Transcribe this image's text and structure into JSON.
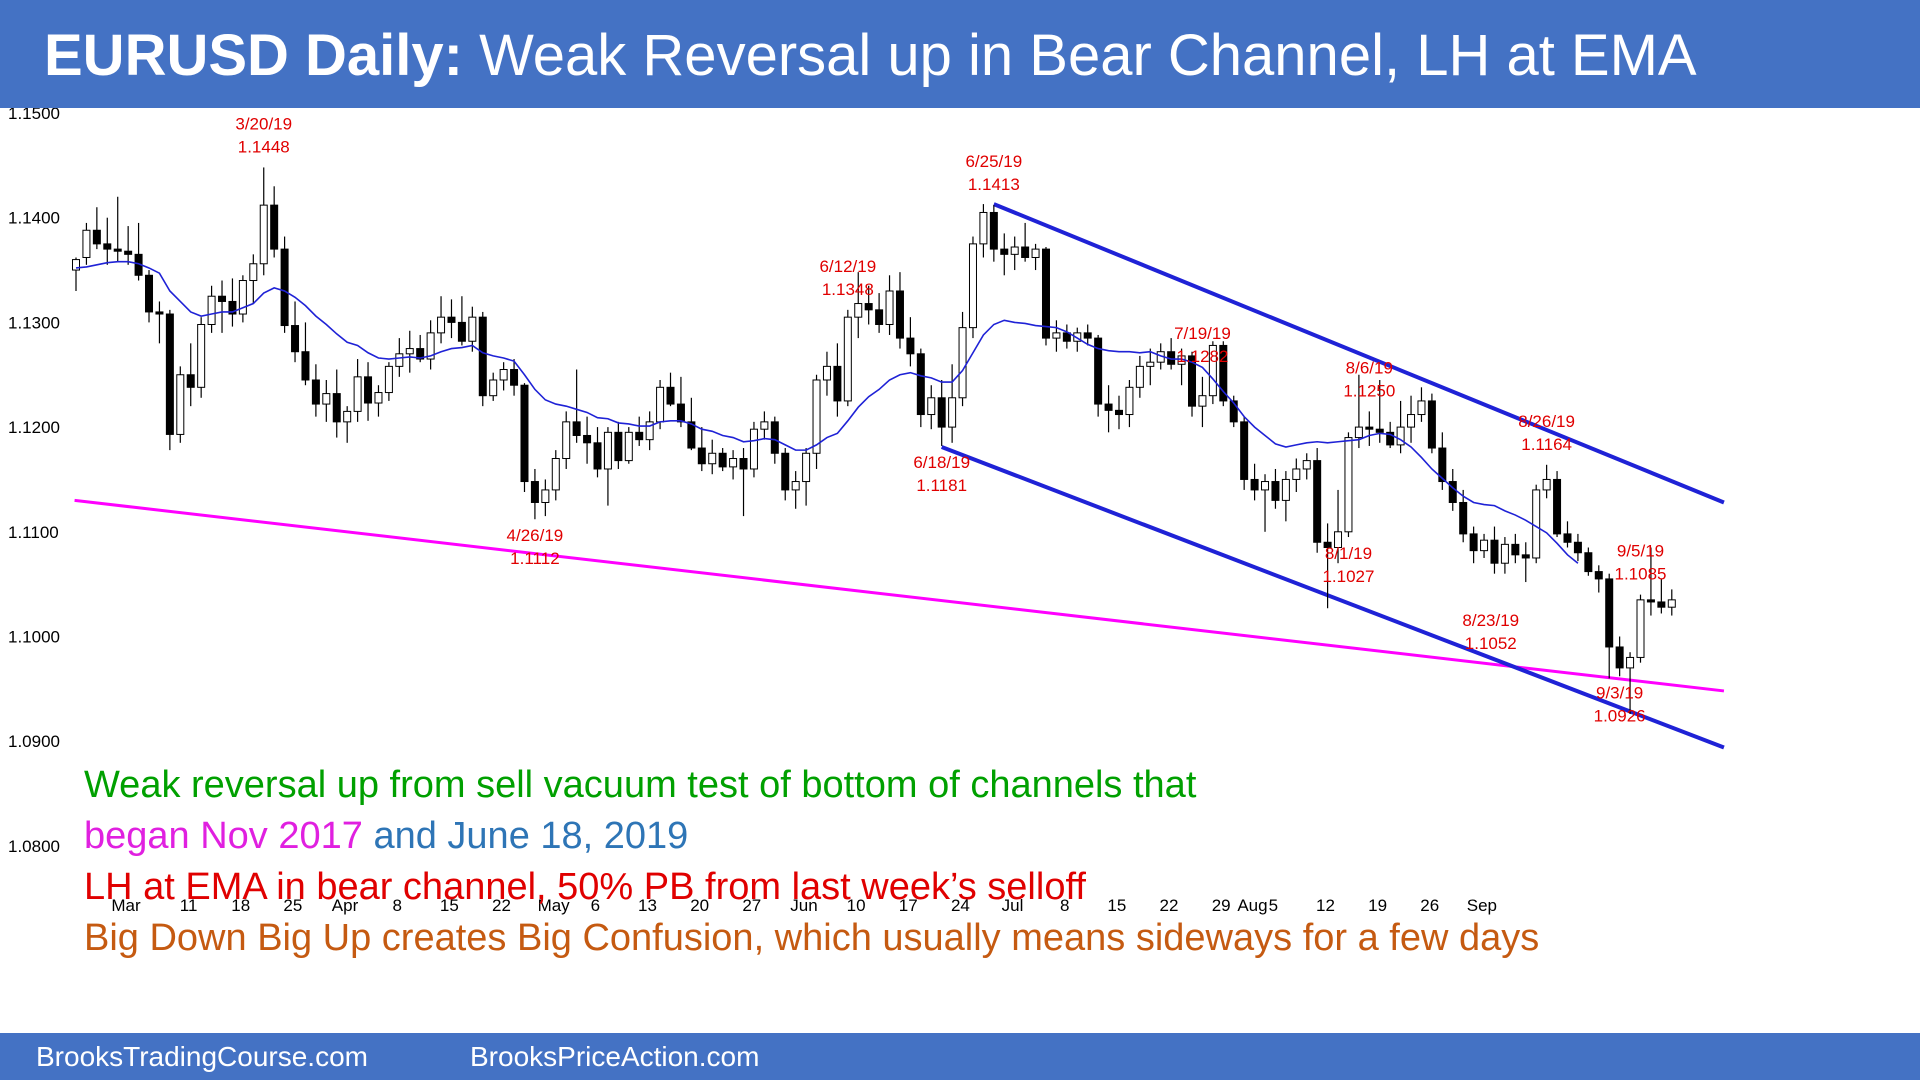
{
  "header": {
    "title_bold": "EURUSD Daily:",
    "title_rest": " Weak Reversal up in Bear Channel, LH at EMA"
  },
  "footer": {
    "left": "BrooksTradingCourse.com",
    "right": "BrooksPriceAction.com"
  },
  "notes": {
    "line1": "Weak reversal up from sell vacuum test of bottom of channels that",
    "line2a": "began Nov 2017",
    "line2b": " and June 18, 2019",
    "line3": "LH at EMA in bear channel, 50% PB from last week’s selloff",
    "line4": "Big Down Big Up creates Big Confusion, which usually means sideways for a few days"
  },
  "colors": {
    "header_bg": "#4472C4",
    "note_green": "#00A000",
    "note_magenta": "#E020E0",
    "note_blue": "#2E75B6",
    "note_red": "#E00000",
    "note_orange": "#C55A11",
    "channel_line": "#1F22D6",
    "trend_line": "#FF00FF",
    "ema_line": "#1F22D6",
    "annotation": "#E00000"
  },
  "chart_data": {
    "type": "candlestick",
    "title": "EURUSD Daily: Weak Reversal up in Bear Channel, LH at EMA",
    "ylim": [
      1.079,
      1.152
    ],
    "y_ticks": [
      "1.1500",
      "1.1400",
      "1.1300",
      "1.1200",
      "1.1100",
      "1.1000",
      "1.0900",
      "1.0800"
    ],
    "x_ticks": [
      {
        "i": 0,
        "label": "Mar"
      },
      {
        "i": 6,
        "label": "11"
      },
      {
        "i": 11,
        "label": "18"
      },
      {
        "i": 16,
        "label": "25"
      },
      {
        "i": 21,
        "label": "Apr"
      },
      {
        "i": 26,
        "label": "8"
      },
      {
        "i": 31,
        "label": "15"
      },
      {
        "i": 36,
        "label": "22"
      },
      {
        "i": 41,
        "label": "May"
      },
      {
        "i": 45,
        "label": "6"
      },
      {
        "i": 50,
        "label": "13"
      },
      {
        "i": 55,
        "label": "20"
      },
      {
        "i": 60,
        "label": "27"
      },
      {
        "i": 65,
        "label": "Jun"
      },
      {
        "i": 70,
        "label": "10"
      },
      {
        "i": 75,
        "label": "17"
      },
      {
        "i": 80,
        "label": "24"
      },
      {
        "i": 85,
        "label": "Jul"
      },
      {
        "i": 90,
        "label": "8"
      },
      {
        "i": 95,
        "label": "15"
      },
      {
        "i": 100,
        "label": "22"
      },
      {
        "i": 105,
        "label": "29"
      },
      {
        "i": 108,
        "label": "Aug"
      },
      {
        "i": 110,
        "label": "5"
      },
      {
        "i": 115,
        "label": "12"
      },
      {
        "i": 120,
        "label": "19"
      },
      {
        "i": 125,
        "label": "26"
      },
      {
        "i": 130,
        "label": "Sep"
      }
    ],
    "candles": [
      [
        1.135,
        1.1362,
        1.133,
        1.136
      ],
      [
        1.1362,
        1.1395,
        1.1355,
        1.1388
      ],
      [
        1.1388,
        1.141,
        1.137,
        1.1375
      ],
      [
        1.1375,
        1.14,
        1.1355,
        1.137
      ],
      [
        1.137,
        1.142,
        1.1358,
        1.1368
      ],
      [
        1.1368,
        1.1392,
        1.1355,
        1.1365
      ],
      [
        1.1365,
        1.1395,
        1.134,
        1.1345
      ],
      [
        1.1345,
        1.135,
        1.13,
        1.131
      ],
      [
        1.131,
        1.132,
        1.128,
        1.1308
      ],
      [
        1.1308,
        1.1312,
        1.1178,
        1.1193
      ],
      [
        1.1193,
        1.1258,
        1.1185,
        1.125
      ],
      [
        1.125,
        1.128,
        1.122,
        1.1238
      ],
      [
        1.1238,
        1.1305,
        1.1228,
        1.1298
      ],
      [
        1.1298,
        1.1335,
        1.129,
        1.1325
      ],
      [
        1.1325,
        1.134,
        1.129,
        1.132
      ],
      [
        1.132,
        1.1342,
        1.1296,
        1.1308
      ],
      [
        1.1308,
        1.1345,
        1.13,
        1.134
      ],
      [
        1.134,
        1.1365,
        1.1318,
        1.1356
      ],
      [
        1.1356,
        1.1448,
        1.1345,
        1.1412
      ],
      [
        1.1412,
        1.143,
        1.1362,
        1.137
      ],
      [
        1.137,
        1.1382,
        1.129,
        1.1297
      ],
      [
        1.1297,
        1.132,
        1.1262,
        1.1272
      ],
      [
        1.1272,
        1.13,
        1.124,
        1.1245
      ],
      [
        1.1245,
        1.126,
        1.121,
        1.1222
      ],
      [
        1.1222,
        1.1245,
        1.1205,
        1.1232
      ],
      [
        1.1232,
        1.1255,
        1.119,
        1.1205
      ],
      [
        1.1205,
        1.122,
        1.1185,
        1.1215
      ],
      [
        1.1215,
        1.1265,
        1.1205,
        1.1248
      ],
      [
        1.1248,
        1.1262,
        1.1206,
        1.1223
      ],
      [
        1.1223,
        1.124,
        1.121,
        1.1233
      ],
      [
        1.1233,
        1.1262,
        1.1225,
        1.1258
      ],
      [
        1.1258,
        1.1285,
        1.1248,
        1.127
      ],
      [
        1.127,
        1.1292,
        1.1252,
        1.1275
      ],
      [
        1.1275,
        1.1288,
        1.1262,
        1.1265
      ],
      [
        1.1265,
        1.1302,
        1.1255,
        1.129
      ],
      [
        1.129,
        1.1325,
        1.128,
        1.1305
      ],
      [
        1.1305,
        1.1322,
        1.1285,
        1.13
      ],
      [
        1.13,
        1.1325,
        1.1278,
        1.1282
      ],
      [
        1.1282,
        1.1315,
        1.1272,
        1.1305
      ],
      [
        1.1305,
        1.131,
        1.122,
        1.123
      ],
      [
        1.123,
        1.1252,
        1.1225,
        1.1245
      ],
      [
        1.1245,
        1.1262,
        1.1235,
        1.1255
      ],
      [
        1.1255,
        1.1265,
        1.123,
        1.124
      ],
      [
        1.124,
        1.1242,
        1.1138,
        1.1148
      ],
      [
        1.1148,
        1.116,
        1.1112,
        1.1128
      ],
      [
        1.1128,
        1.115,
        1.1115,
        1.114
      ],
      [
        1.114,
        1.1178,
        1.113,
        1.117
      ],
      [
        1.117,
        1.1215,
        1.116,
        1.1205
      ],
      [
        1.1205,
        1.1255,
        1.1185,
        1.1192
      ],
      [
        1.1192,
        1.121,
        1.1165,
        1.1185
      ],
      [
        1.1185,
        1.12,
        1.1152,
        1.116
      ],
      [
        1.116,
        1.12,
        1.1125,
        1.1195
      ],
      [
        1.1195,
        1.1205,
        1.116,
        1.1168
      ],
      [
        1.1168,
        1.12,
        1.1165,
        1.1195
      ],
      [
        1.1195,
        1.121,
        1.1182,
        1.1188
      ],
      [
        1.1188,
        1.1215,
        1.1178,
        1.1205
      ],
      [
        1.1205,
        1.1245,
        1.1198,
        1.1238
      ],
      [
        1.1238,
        1.1252,
        1.122,
        1.1222
      ],
      [
        1.1222,
        1.1248,
        1.12,
        1.1205
      ],
      [
        1.1205,
        1.1228,
        1.1178,
        1.118
      ],
      [
        1.118,
        1.12,
        1.1158,
        1.1165
      ],
      [
        1.1165,
        1.1188,
        1.1155,
        1.1175
      ],
      [
        1.1175,
        1.118,
        1.1158,
        1.1162
      ],
      [
        1.1162,
        1.1178,
        1.115,
        1.117
      ],
      [
        1.117,
        1.118,
        1.1115,
        1.116
      ],
      [
        1.116,
        1.1205,
        1.1152,
        1.1198
      ],
      [
        1.1198,
        1.1215,
        1.1188,
        1.1205
      ],
      [
        1.1205,
        1.121,
        1.1165,
        1.1175
      ],
      [
        1.1175,
        1.118,
        1.113,
        1.114
      ],
      [
        1.114,
        1.1158,
        1.1122,
        1.1148
      ],
      [
        1.1148,
        1.118,
        1.1125,
        1.1175
      ],
      [
        1.1175,
        1.125,
        1.116,
        1.1245
      ],
      [
        1.1245,
        1.1272,
        1.123,
        1.1258
      ],
      [
        1.1258,
        1.128,
        1.121,
        1.1225
      ],
      [
        1.1225,
        1.1312,
        1.122,
        1.1305
      ],
      [
        1.1305,
        1.1348,
        1.1285,
        1.1318
      ],
      [
        1.1318,
        1.1335,
        1.1298,
        1.1312
      ],
      [
        1.1312,
        1.1328,
        1.129,
        1.1298
      ],
      [
        1.1298,
        1.1345,
        1.1288,
        1.133
      ],
      [
        1.133,
        1.1348,
        1.1275,
        1.1285
      ],
      [
        1.1285,
        1.1305,
        1.1258,
        1.127
      ],
      [
        1.127,
        1.1275,
        1.12,
        1.1212
      ],
      [
        1.1212,
        1.124,
        1.1198,
        1.1228
      ],
      [
        1.1228,
        1.1245,
        1.1182,
        1.12
      ],
      [
        1.12,
        1.126,
        1.1185,
        1.1228
      ],
      [
        1.1228,
        1.131,
        1.122,
        1.1295
      ],
      [
        1.1295,
        1.1382,
        1.1285,
        1.1375
      ],
      [
        1.1375,
        1.1413,
        1.1362,
        1.1405
      ],
      [
        1.1405,
        1.1412,
        1.1358,
        1.137
      ],
      [
        1.137,
        1.1385,
        1.1345,
        1.1365
      ],
      [
        1.1365,
        1.1382,
        1.135,
        1.1372
      ],
      [
        1.1372,
        1.1395,
        1.1358,
        1.1362
      ],
      [
        1.1362,
        1.1375,
        1.135,
        1.137
      ],
      [
        1.137,
        1.1372,
        1.1278,
        1.1285
      ],
      [
        1.1285,
        1.1302,
        1.1272,
        1.129
      ],
      [
        1.129,
        1.1298,
        1.1275,
        1.1282
      ],
      [
        1.1282,
        1.1295,
        1.1272,
        1.129
      ],
      [
        1.129,
        1.1298,
        1.1278,
        1.1285
      ],
      [
        1.1285,
        1.1288,
        1.121,
        1.1222
      ],
      [
        1.1222,
        1.124,
        1.1195,
        1.1216
      ],
      [
        1.1216,
        1.123,
        1.1198,
        1.1212
      ],
      [
        1.1212,
        1.1245,
        1.12,
        1.1238
      ],
      [
        1.1238,
        1.1268,
        1.1228,
        1.1258
      ],
      [
        1.1258,
        1.1275,
        1.124,
        1.1262
      ],
      [
        1.1262,
        1.128,
        1.1255,
        1.1272
      ],
      [
        1.1272,
        1.1285,
        1.1255,
        1.126
      ],
      [
        1.126,
        1.1275,
        1.124,
        1.1268
      ],
      [
        1.1268,
        1.1272,
        1.121,
        1.122
      ],
      [
        1.122,
        1.1248,
        1.12,
        1.123
      ],
      [
        1.123,
        1.1282,
        1.1222,
        1.1278
      ],
      [
        1.1278,
        1.1282,
        1.122,
        1.1225
      ],
      [
        1.1225,
        1.123,
        1.12,
        1.1205
      ],
      [
        1.1205,
        1.121,
        1.114,
        1.115
      ],
      [
        1.115,
        1.1165,
        1.113,
        1.114
      ],
      [
        1.114,
        1.1155,
        1.11,
        1.1148
      ],
      [
        1.1148,
        1.116,
        1.1122,
        1.113
      ],
      [
        1.113,
        1.1158,
        1.111,
        1.115
      ],
      [
        1.115,
        1.117,
        1.1138,
        1.116
      ],
      [
        1.116,
        1.1175,
        1.115,
        1.1168
      ],
      [
        1.1168,
        1.118,
        1.108,
        1.109
      ],
      [
        1.109,
        1.1108,
        1.1027,
        1.1085
      ],
      [
        1.1085,
        1.114,
        1.107,
        1.11
      ],
      [
        1.11,
        1.1195,
        1.1095,
        1.119
      ],
      [
        1.119,
        1.125,
        1.118,
        1.12
      ],
      [
        1.12,
        1.1215,
        1.1182,
        1.1198
      ],
      [
        1.1198,
        1.1245,
        1.1185,
        1.1195
      ],
      [
        1.1195,
        1.1205,
        1.118,
        1.1183
      ],
      [
        1.1183,
        1.1225,
        1.1175,
        1.12
      ],
      [
        1.12,
        1.123,
        1.1185,
        1.1212
      ],
      [
        1.1212,
        1.1238,
        1.1205,
        1.1225
      ],
      [
        1.1225,
        1.1232,
        1.1175,
        1.118
      ],
      [
        1.118,
        1.1195,
        1.114,
        1.1148
      ],
      [
        1.1148,
        1.116,
        1.112,
        1.1128
      ],
      [
        1.1128,
        1.114,
        1.109,
        1.1098
      ],
      [
        1.1098,
        1.1105,
        1.107,
        1.1082
      ],
      [
        1.1082,
        1.1098,
        1.1075,
        1.1092
      ],
      [
        1.1092,
        1.1105,
        1.106,
        1.107
      ],
      [
        1.107,
        1.1095,
        1.106,
        1.1088
      ],
      [
        1.1088,
        1.1098,
        1.107,
        1.1078
      ],
      [
        1.1078,
        1.109,
        1.1052,
        1.1075
      ],
      [
        1.1075,
        1.1145,
        1.107,
        1.114
      ],
      [
        1.114,
        1.1164,
        1.1132,
        1.115
      ],
      [
        1.115,
        1.1158,
        1.1095,
        1.1098
      ],
      [
        1.1098,
        1.111,
        1.1085,
        1.109
      ],
      [
        1.109,
        1.1098,
        1.1072,
        1.108
      ],
      [
        1.108,
        1.1085,
        1.1058,
        1.1062
      ],
      [
        1.1062,
        1.1068,
        1.1042,
        1.1055
      ],
      [
        1.1055,
        1.106,
        1.096,
        1.099
      ],
      [
        1.099,
        1.1,
        1.0962,
        1.097
      ],
      [
        1.097,
        1.0985,
        1.0926,
        1.098
      ],
      [
        1.098,
        1.104,
        1.0975,
        1.1035
      ],
      [
        1.1035,
        1.1085,
        1.102,
        1.1033
      ],
      [
        1.1033,
        1.1055,
        1.1022,
        1.1028
      ],
      [
        1.1028,
        1.1045,
        1.102,
        1.1035
      ]
    ],
    "ema": [
      1.1352,
      1.1353,
      1.1355,
      1.1357,
      1.1358,
      1.1358,
      1.1356,
      1.1352,
      1.1347,
      1.133,
      1.132,
      1.131,
      1.1306,
      1.1308,
      1.131,
      1.131,
      1.1314,
      1.1318,
      1.1328,
      1.1333,
      1.133,
      1.1324,
      1.1316,
      1.1306,
      1.1298,
      1.1289,
      1.1281,
      1.1278,
      1.1271,
      1.1266,
      1.1265,
      1.1266,
      1.1267,
      1.1266,
      1.1268,
      1.1272,
      1.1275,
      1.1276,
      1.1278,
      1.1271,
      1.1268,
      1.1266,
      1.1263,
      1.125,
      1.1236,
      1.1226,
      1.1222,
      1.122,
      1.1217,
      1.1214,
      1.1209,
      1.1208,
      1.1204,
      1.1203,
      1.1201,
      1.1201,
      1.1205,
      1.1206,
      1.1206,
      1.1203,
      1.1198,
      1.1196,
      1.1192,
      1.119,
      1.1186,
      1.1187,
      1.1189,
      1.1188,
      1.1183,
      1.1178,
      1.1178,
      1.1183,
      1.119,
      1.1194,
      1.1206,
      1.1219,
      1.1229,
      1.1236,
      1.1245,
      1.125,
      1.1252,
      1.1249,
      1.1247,
      1.1243,
      1.1243,
      1.1254,
      1.1271,
      1.1288,
      1.1298,
      1.1302,
      1.13,
      1.1299,
      1.1297,
      1.1296,
      1.1295,
      1.1291,
      1.1285,
      1.1279,
      1.1275,
      1.1273,
      1.1272,
      1.1272,
      1.1271,
      1.1272,
      1.1268,
      1.1265,
      1.1265,
      1.1262,
      1.1257,
      1.1246,
      1.1234,
      1.1223,
      1.121,
      1.12,
      1.1192,
      1.1184,
      1.1181,
      1.1183,
      1.1185,
      1.1186,
      1.1185,
      1.1186,
      1.1187,
      1.1188,
      1.1192,
      1.1194,
      1.1193,
      1.1188,
      1.1181,
      1.1171,
      1.116,
      1.1151,
      1.1142,
      1.1134,
      1.1128,
      1.1126,
      1.1125,
      1.112,
      1.1116,
      1.1111,
      1.1105,
      1.1099,
      1.1089,
      1.1078,
      1.107
    ],
    "annotations": [
      {
        "i": 18,
        "date": "3/20/19",
        "price": "1.1448",
        "pos": "above"
      },
      {
        "i": 44,
        "date": "4/26/19",
        "price": "1.1112",
        "pos": "below"
      },
      {
        "i": 74,
        "date": "6/12/19",
        "price": "1.1348",
        "pos": "above"
      },
      {
        "i": 83,
        "date": "6/18/19",
        "price": "1.1181",
        "pos": "below"
      },
      {
        "i": 88,
        "date": "6/25/19",
        "price": "1.1413",
        "pos": "above"
      },
      {
        "i": 108,
        "date": "7/19/19",
        "price": "1.1282",
        "pos": "above"
      },
      {
        "i": 122,
        "date": "8/1/19",
        "price": "1.1027",
        "pos": "below"
      },
      {
        "i": 124,
        "date": "8/6/19",
        "price": "1.1250",
        "pos": "above"
      },
      {
        "i": 139,
        "date": "8/23/19",
        "price": "1.1052",
        "pos": "left"
      },
      {
        "i": 141,
        "date": "8/26/19",
        "price": "1.1164",
        "pos": "above"
      },
      {
        "i": 148,
        "date": "9/3/19",
        "price": "1.0926",
        "pos": "below"
      },
      {
        "i": 150,
        "date": "9/5/19",
        "price": "1.1085",
        "pos": "above"
      }
    ],
    "channel_upper": {
      "from": {
        "i": 88,
        "price": 1.1413
      },
      "to": {
        "i": 158,
        "price": 1.1128
      }
    },
    "channel_lower": {
      "from": {
        "i": 83,
        "price": 1.1181
      },
      "to": {
        "i": 158,
        "price": 1.0894
      }
    },
    "trend_line": {
      "from": {
        "i": -1,
        "price": 1.113
      },
      "to": {
        "i": 158,
        "price": 1.0948
      }
    },
    "grid": false,
    "legend": "none"
  }
}
